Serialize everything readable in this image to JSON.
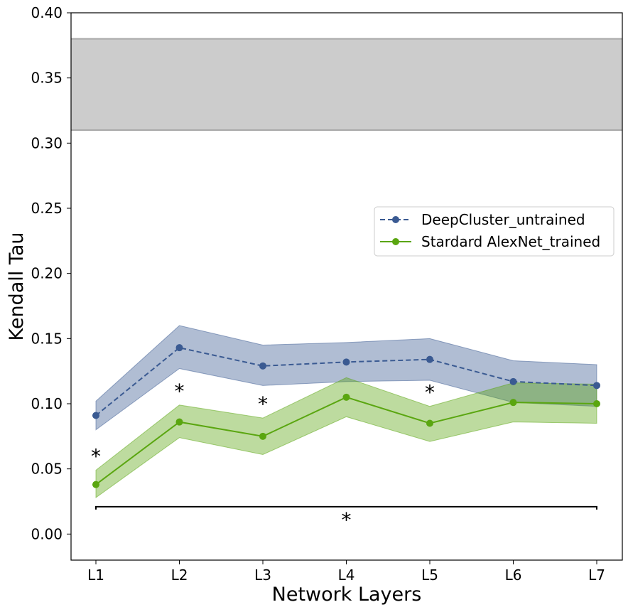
{
  "chart_data": {
    "type": "line",
    "xlabel": "Network Layers",
    "ylabel": "Kendall Tau",
    "categories": [
      "L1",
      "L2",
      "L3",
      "L4",
      "L5",
      "L6",
      "L7"
    ],
    "ylim": [
      -0.02,
      0.4
    ],
    "yticks": [
      "0.00",
      "0.05",
      "0.10",
      "0.15",
      "0.20",
      "0.25",
      "0.30",
      "0.35",
      "0.40"
    ],
    "grid": false,
    "legend_position": "right",
    "series": [
      {
        "name": "DeepCluster_untrained",
        "color": "#3a5a92",
        "linestyle": "dashed",
        "values": [
          0.091,
          0.143,
          0.129,
          0.132,
          0.134,
          0.117,
          0.114
        ],
        "ci_low": [
          0.08,
          0.127,
          0.114,
          0.117,
          0.118,
          0.101,
          0.098
        ],
        "ci_high": [
          0.102,
          0.16,
          0.145,
          0.147,
          0.15,
          0.133,
          0.13
        ]
      },
      {
        "name": "Stardard AlexNet_trained",
        "color": "#5aa610",
        "linestyle": "solid",
        "values": [
          0.038,
          0.086,
          0.075,
          0.105,
          0.085,
          0.101,
          0.1
        ],
        "ci_low": [
          0.028,
          0.074,
          0.061,
          0.09,
          0.071,
          0.086,
          0.085
        ],
        "ci_high": [
          0.049,
          0.099,
          0.089,
          0.12,
          0.098,
          0.116,
          0.115
        ]
      }
    ],
    "noise_ceiling": {
      "low": 0.31,
      "high": 0.38,
      "color": "#cccccc"
    },
    "significance": {
      "marker": "*",
      "layers": [
        "L1",
        "L2",
        "L3",
        "L5"
      ],
      "overall": {
        "from": "L1",
        "to": "L7",
        "y": 0.021
      }
    }
  }
}
